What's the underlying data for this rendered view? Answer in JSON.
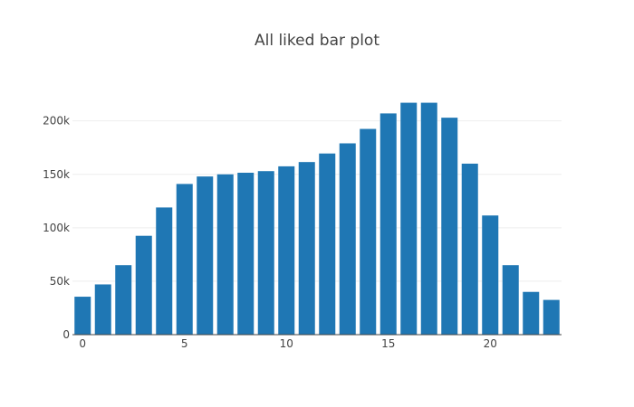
{
  "chart_data": {
    "type": "bar",
    "title": "All liked bar plot",
    "xlabel": "",
    "ylabel": "",
    "x": [
      0,
      1,
      2,
      3,
      4,
      5,
      6,
      7,
      8,
      9,
      10,
      11,
      12,
      13,
      14,
      15,
      16,
      17,
      18,
      19,
      20,
      21,
      22,
      23
    ],
    "values": [
      35500,
      47000,
      65000,
      92500,
      119000,
      141000,
      148000,
      150000,
      151500,
      153000,
      157500,
      161500,
      169500,
      179000,
      192500,
      207000,
      217000,
      217000,
      203000,
      160000,
      111500,
      65000,
      40000,
      32500
    ],
    "xlim": [
      -0.5,
      23.5
    ],
    "ylim": [
      0,
      228500
    ],
    "x_ticks": [
      0,
      5,
      10,
      15,
      20
    ],
    "x_tick_labels": [
      "0",
      "5",
      "10",
      "15",
      "20"
    ],
    "y_ticks": [
      0,
      50000,
      100000,
      150000,
      200000
    ],
    "y_tick_labels": [
      "0",
      "50k",
      "100k",
      "150k",
      "200k"
    ],
    "grid": true,
    "bar_color": "#1f77b4"
  }
}
